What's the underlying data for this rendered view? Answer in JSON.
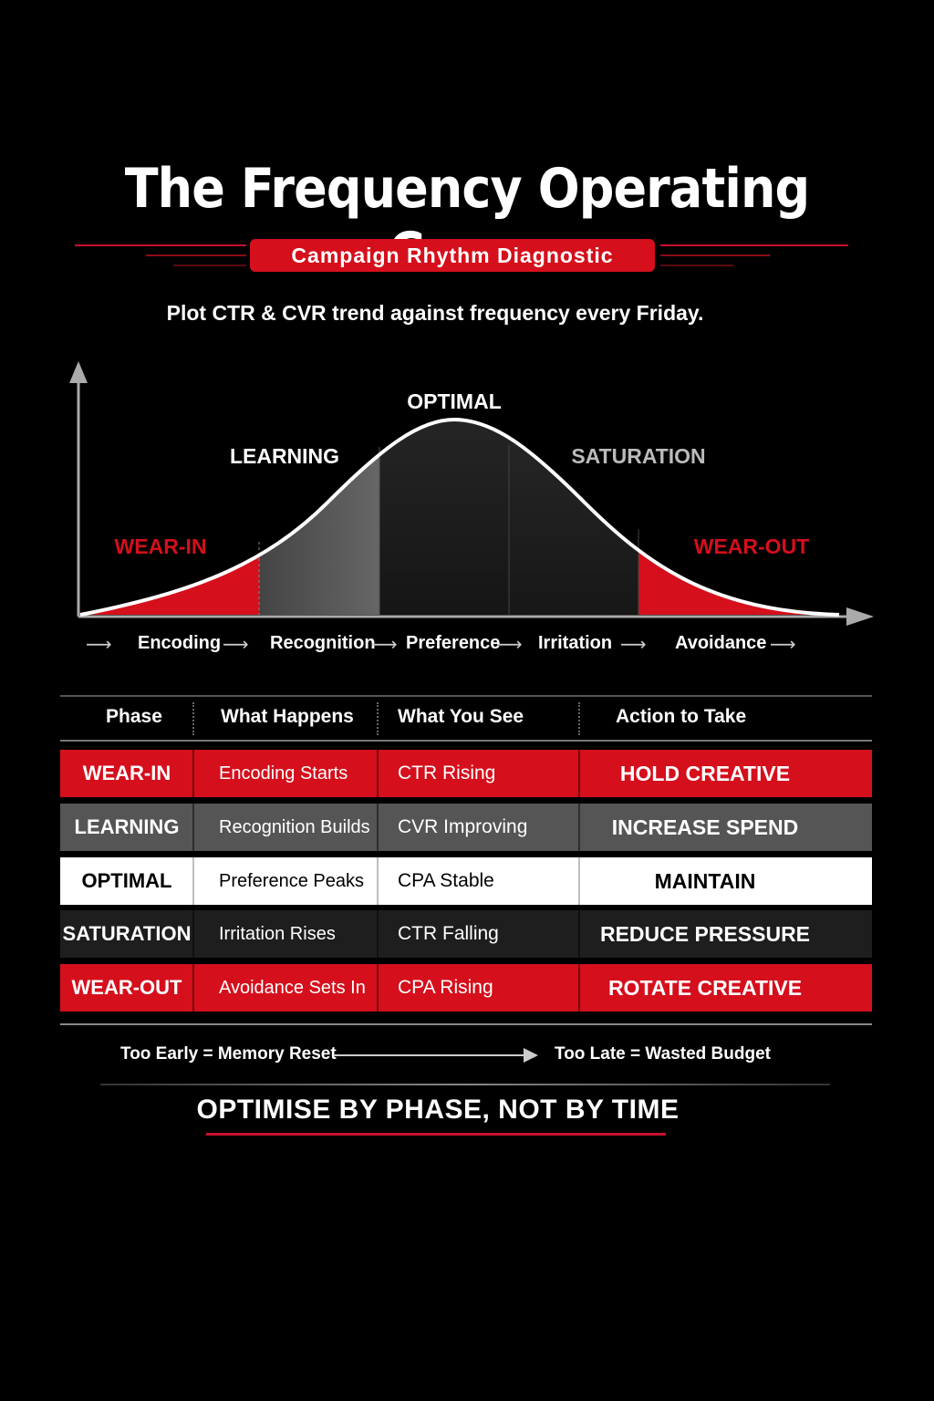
{
  "title": "The Frequency Operating Curve",
  "badge": "Campaign Rhythm Diagnostic",
  "subtitle": "Plot CTR & CVR trend against frequency every Friday.",
  "curve": {
    "phases": [
      "WEAR-IN",
      "LEARNING",
      "OPTIMAL",
      "SATURATION",
      "WEAR-OUT"
    ],
    "stages": [
      "Encoding",
      "Recognition",
      "Preference",
      "Irritation",
      "Avoidance"
    ]
  },
  "table": {
    "headers": [
      "Phase",
      "What Happens",
      "What You See",
      "Action to Take"
    ],
    "rows": [
      {
        "phase": "WEAR-IN",
        "happens": "Encoding Starts",
        "see": "CTR Rising",
        "action": "HOLD CREATIVE"
      },
      {
        "phase": "LEARNING",
        "happens": "Recognition Builds",
        "see": "CVR Improving",
        "action": "INCREASE SPEND"
      },
      {
        "phase": "OPTIMAL",
        "happens": "Preference Peaks",
        "see": "CPA Stable",
        "action": "MAINTAIN"
      },
      {
        "phase": "SATURATION",
        "happens": "Irritation Rises",
        "see": "CTR Falling",
        "action": "REDUCE PRESSURE"
      },
      {
        "phase": "WEAR-OUT",
        "happens": "Avoidance Sets In",
        "see": "CPA Rising",
        "action": "ROTATE CREATIVE"
      }
    ]
  },
  "footer": {
    "early": "Too Early = Memory Reset",
    "late": "Too Late = Wasted Budget",
    "tagline": "OPTIMISE BY PHASE, NOT BY TIME"
  },
  "colors": {
    "accent_red": "#d50f1c",
    "learning_gray": "#555555",
    "optimal_white": "#ffffff",
    "saturation_dark": "#1e1e1e"
  }
}
